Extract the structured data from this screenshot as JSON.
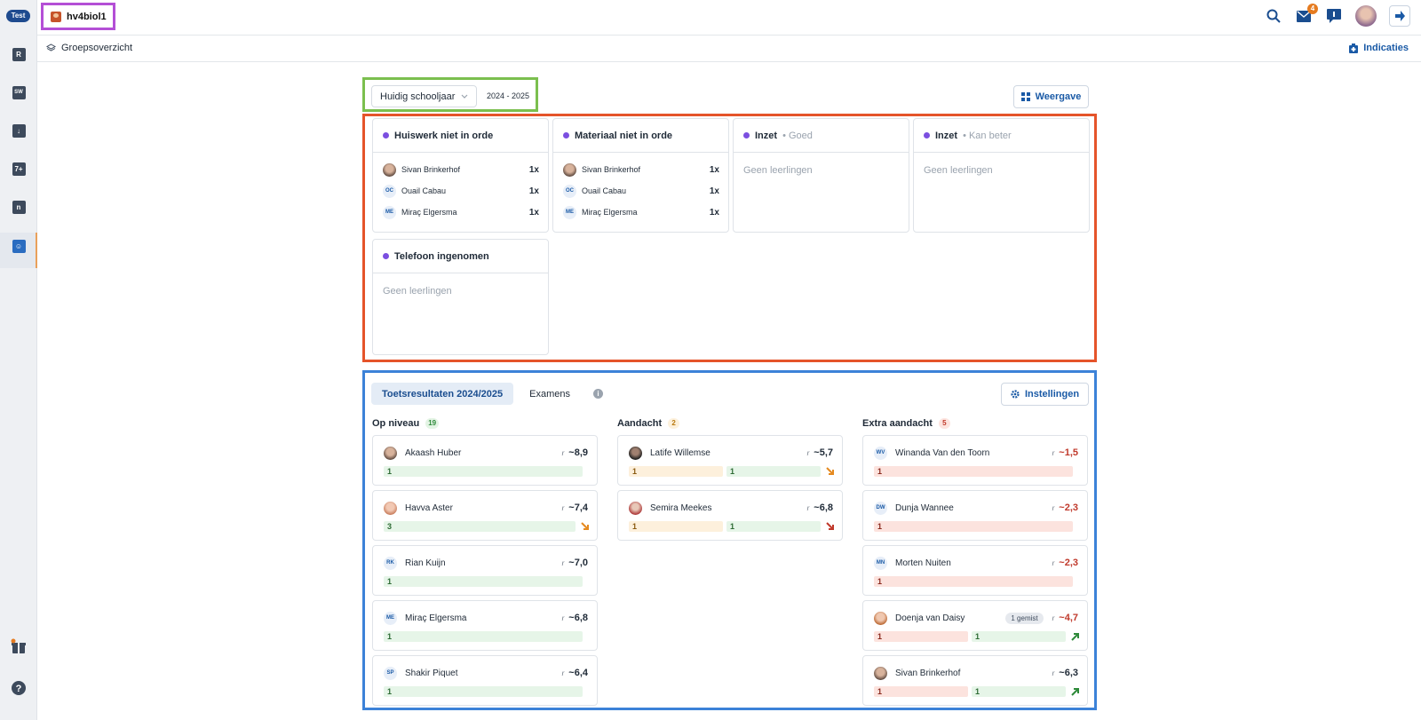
{
  "rail": {
    "env": "Test"
  },
  "topbar": {
    "group": "hv4biol1",
    "mail_badge": "4"
  },
  "subbar": {
    "breadcrumb": "Groepsoverzicht",
    "indicaties": "Indicaties"
  },
  "year": {
    "select": "Huidig schooljaar",
    "range": "2024 - 2025",
    "view_button": "Weergave"
  },
  "notes": [
    {
      "title": "Huiswerk niet in orde",
      "sub": "",
      "students": [
        {
          "name": "Sivan Brinkerhof",
          "initials": "",
          "count": "1x"
        },
        {
          "name": "Ouail Cabau",
          "initials": "OC",
          "count": "1x"
        },
        {
          "name": "Miraç Elgersma",
          "initials": "ME",
          "count": "1x"
        }
      ]
    },
    {
      "title": "Materiaal niet in orde",
      "sub": "",
      "students": [
        {
          "name": "Sivan Brinkerhof",
          "initials": "",
          "count": "1x"
        },
        {
          "name": "Ouail Cabau",
          "initials": "OC",
          "count": "1x"
        },
        {
          "name": "Miraç Elgersma",
          "initials": "ME",
          "count": "1x"
        }
      ]
    },
    {
      "title": "Inzet",
      "sub": " • Goed",
      "empty": "Geen leerlingen"
    },
    {
      "title": "Inzet",
      "sub": " • Kan beter",
      "empty": "Geen leerlingen"
    },
    {
      "title": "Telefoon ingenomen",
      "sub": "",
      "empty": "Geen leerlingen"
    }
  ],
  "results": {
    "tabs": [
      "Toetsresultaten 2024/2025",
      "Examens"
    ],
    "settings": "Instellingen",
    "r_label": "r",
    "columns": [
      {
        "title": "Op niveau",
        "count": "19",
        "students": [
          {
            "name": "Akaash Huber",
            "grade": "~8,9",
            "bars": [
              "1"
            ],
            "missed": ""
          },
          {
            "name": "Havva Aster",
            "grade": "~7,4",
            "bars": [
              "3"
            ],
            "missed": ""
          },
          {
            "name": "Rian Kuijn",
            "initials": "RK",
            "grade": "~7,0",
            "bars": [
              "1"
            ],
            "missed": ""
          },
          {
            "name": "Miraç Elgersma",
            "initials": "ME",
            "grade": "~6,8",
            "bars": [
              "1"
            ],
            "missed": ""
          },
          {
            "name": "Shakir Piquet",
            "initials": "SP",
            "grade": "~6,4",
            "bars": [
              "1"
            ],
            "missed": ""
          }
        ]
      },
      {
        "title": "Aandacht",
        "count": "2",
        "students": [
          {
            "name": "Latife Willemse",
            "grade": "~5,7",
            "bars": [
              "1",
              "1"
            ],
            "missed": ""
          },
          {
            "name": "Semira Meekes",
            "grade": "~6,8",
            "bars": [
              "1",
              "1"
            ],
            "missed": ""
          }
        ]
      },
      {
        "title": "Extra aandacht",
        "count": "5",
        "students": [
          {
            "name": "Winanda Van den Toorn",
            "initials": "WV",
            "grade": "~1,5",
            "bars": [
              "1"
            ],
            "missed": ""
          },
          {
            "name": "Dunja Wannee",
            "initials": "DW",
            "grade": "~2,3",
            "bars": [
              "1"
            ],
            "missed": ""
          },
          {
            "name": "Morten Nuiten",
            "initials": "MN",
            "grade": "~2,3",
            "bars": [
              "1"
            ],
            "missed": ""
          },
          {
            "name": "Doenja van Daisy",
            "grade": "~4,7",
            "bars": [
              "1",
              "1"
            ],
            "missed": "1 gemist"
          },
          {
            "name": "Sivan Brinkerhof",
            "grade": "~6,3",
            "bars": [
              "1",
              "1"
            ],
            "missed": ""
          }
        ]
      }
    ]
  },
  "colors": {
    "accent": "#1a5aa6",
    "green": "#2e8a3a",
    "red": "#c0392b",
    "orange": "#e58a20"
  }
}
